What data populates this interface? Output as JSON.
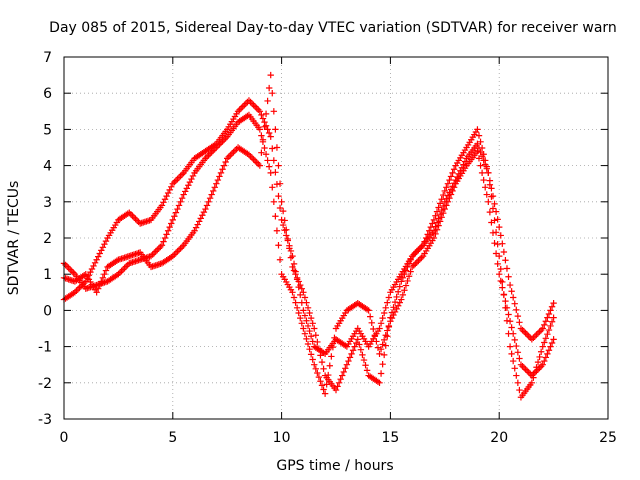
{
  "chart_data": {
    "type": "scatter",
    "title": "Day 085 of 2015, Sidereal Day-to-day VTEC variation (SDTVAR) for receiver warn",
    "xlabel": "GPS time / hours",
    "ylabel": "SDTVAR / TECUs",
    "xlim": [
      0,
      25
    ],
    "ylim": [
      -3,
      7
    ],
    "xticks": [
      "0",
      "5",
      "10",
      "15",
      "20",
      "25"
    ],
    "yticks": [
      "-3",
      "-2",
      "-1",
      "0",
      "1",
      "2",
      "3",
      "4",
      "5",
      "6",
      "7"
    ],
    "grid": true,
    "marker": "+",
    "color": "#ff0000",
    "series": [
      {
        "name": "",
        "x": [
          0.0,
          0.5,
          1.0,
          1.5,
          2.0,
          2.5,
          3.0,
          3.5,
          4.0,
          4.5,
          5.0,
          5.5,
          6.0,
          6.5,
          7.0,
          7.5,
          8.0,
          8.5,
          9.0,
          9.5,
          10.0,
          10.5,
          11.0,
          11.5,
          12.0,
          12.5,
          13.0,
          13.5,
          14.0,
          14.5,
          15.0,
          15.5,
          16.0,
          16.5,
          17.0,
          17.5,
          18.0,
          18.5,
          19.0,
          19.5,
          20.0,
          20.5,
          21.0,
          21.5,
          22.0,
          22.5
        ],
        "y": [
          0.3,
          0.5,
          0.8,
          1.4,
          2.0,
          2.5,
          2.7,
          2.4,
          2.5,
          2.9,
          3.5,
          3.8,
          4.2,
          4.4,
          4.6,
          5.0,
          5.5,
          5.8,
          5.5,
          4.8,
          2.5,
          1.5,
          0.0,
          -1.0,
          -1.2,
          -0.8,
          -1.0,
          -0.5,
          -1.0,
          -0.5,
          0.5,
          1.0,
          1.5,
          1.8,
          2.5,
          3.3,
          4.0,
          4.5,
          5.0,
          3.8,
          2.3,
          0.7,
          -0.5,
          -0.8,
          -0.5,
          0.2
        ]
      },
      {
        "name": "",
        "x": [
          0.0,
          0.5,
          1.0,
          1.5,
          2.0,
          2.5,
          3.0,
          3.5,
          4.0,
          4.5,
          5.0,
          5.5,
          6.0,
          6.5,
          7.0,
          7.5,
          8.0,
          8.5,
          9.0,
          9.5,
          10.0,
          10.5,
          11.0,
          11.5,
          12.0,
          12.5,
          13.0,
          13.5,
          14.0,
          14.5,
          15.0,
          15.5,
          16.0,
          16.5,
          17.0,
          17.5,
          18.0,
          18.5,
          19.0,
          19.5,
          20.0,
          20.5,
          21.0,
          21.5,
          22.0,
          22.5
        ],
        "y": [
          1.3,
          1.0,
          0.6,
          0.7,
          0.8,
          1.0,
          1.3,
          1.4,
          1.5,
          1.8,
          2.5,
          3.2,
          3.8,
          4.2,
          4.5,
          4.8,
          5.2,
          5.4,
          5.0,
          3.8,
          1.0,
          0.5,
          -0.5,
          -1.5,
          -2.3,
          -0.5,
          0.0,
          0.2,
          0.0,
          -1.2,
          -0.3,
          0.3,
          1.2,
          1.5,
          2.0,
          2.8,
          3.5,
          4.0,
          4.4,
          3.0,
          1.0,
          -0.3,
          -1.5,
          -1.8,
          -1.5,
          -0.8
        ]
      },
      {
        "name": "",
        "x": [
          0.0,
          0.5,
          1.0,
          1.5,
          2.0,
          2.5,
          3.0,
          3.5,
          4.0,
          4.5,
          5.0,
          5.5,
          6.0,
          6.5,
          7.0,
          7.5,
          8.0,
          8.5,
          9.0,
          9.5,
          10.0,
          10.5,
          11.0,
          11.5,
          12.0,
          12.5,
          13.0,
          13.5,
          14.0,
          14.5,
          15.0,
          15.5,
          16.0,
          16.5,
          17.0,
          17.5,
          18.0,
          18.5,
          19.0,
          19.5,
          20.0,
          20.5,
          21.0,
          21.5,
          22.0,
          22.5
        ],
        "y": [
          0.9,
          0.8,
          1.0,
          0.5,
          1.2,
          1.4,
          1.5,
          1.6,
          1.2,
          1.3,
          1.5,
          1.8,
          2.2,
          2.8,
          3.5,
          4.2,
          4.5,
          4.3,
          4.0,
          6.5,
          3.0,
          1.2,
          0.5,
          -0.5,
          -1.8,
          -2.2,
          -1.5,
          -0.8,
          -1.8,
          -2.0,
          -0.2,
          0.8,
          1.5,
          1.8,
          2.2,
          3.0,
          3.6,
          4.2,
          4.6,
          3.8,
          1.5,
          -1.0,
          -2.4,
          -2.0,
          -1.0,
          -0.2
        ]
      }
    ]
  }
}
